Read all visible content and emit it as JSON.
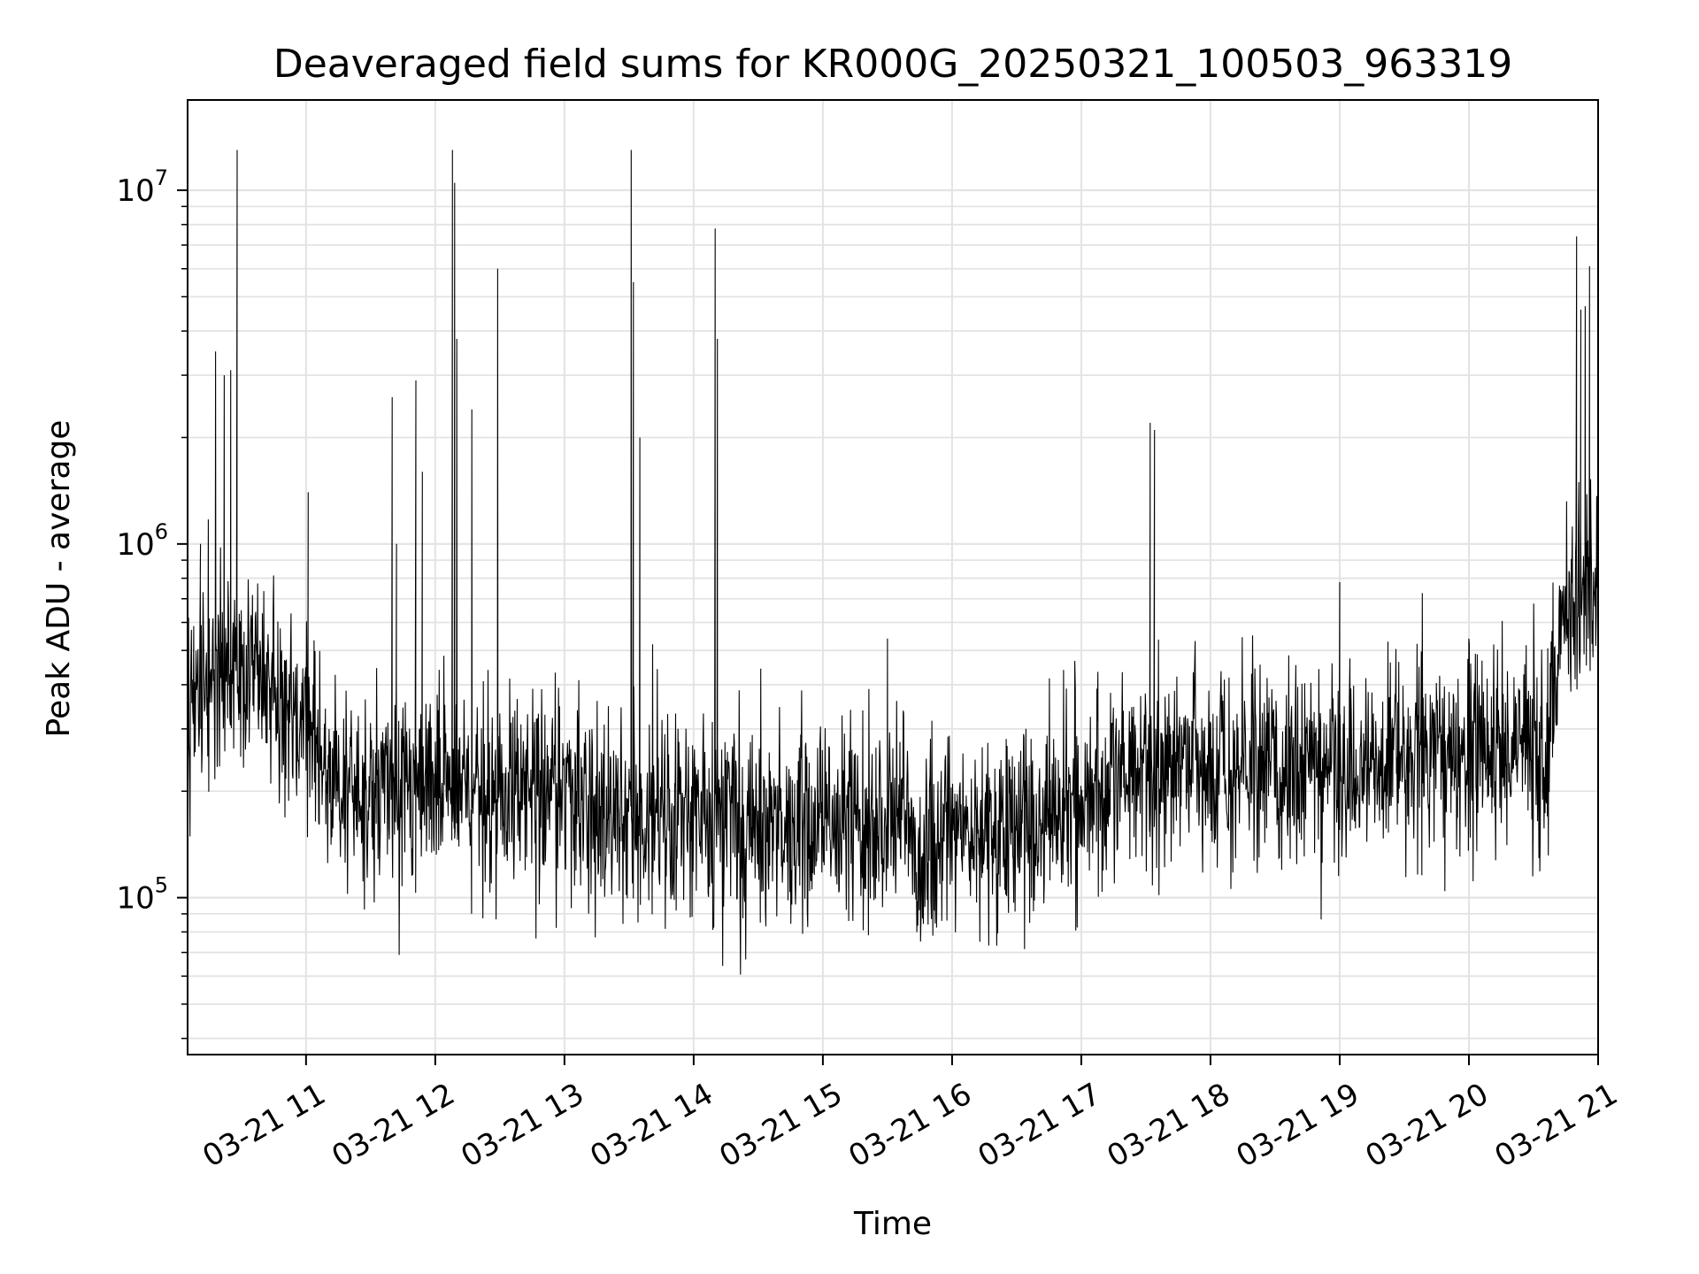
{
  "chart_data": {
    "type": "line",
    "title": "Deaveraged field sums for KR000G_20250321_100503_963319",
    "xlabel": "Time",
    "ylabel": "Peak ADU - average",
    "yscale": "log",
    "xlim": [
      "2025-03-21 10:05",
      "2025-03-21 21:00"
    ],
    "ylim": [
      36000,
      18000000
    ],
    "grid": true,
    "line_color": "#000000",
    "x_ticks": [
      "03-21 11",
      "03-21 12",
      "03-21 13",
      "03-21 14",
      "03-21 15",
      "03-21 16",
      "03-21 17",
      "03-21 18",
      "03-21 19",
      "03-21 20",
      "03-21 21"
    ],
    "y_ticks": [
      {
        "base": "10",
        "exp": "5",
        "value": 100000
      },
      {
        "base": "10",
        "exp": "6",
        "value": 1000000
      },
      {
        "base": "10",
        "exp": "7",
        "value": 10000000
      }
    ],
    "series": [
      {
        "x": [
          "2025-03-21 10:05",
          "2025-03-21 10:20",
          "2025-03-21 10:40",
          "2025-03-21 11:00",
          "2025-03-21 11:10",
          "2025-03-21 11:30",
          "2025-03-21 12:00",
          "2025-03-21 12:30",
          "2025-03-21 13:00",
          "2025-03-21 13:30",
          "2025-03-21 14:00",
          "2025-03-21 14:30",
          "2025-03-21 15:00",
          "2025-03-21 15:30",
          "2025-03-21 16:00",
          "2025-03-21 16:30",
          "2025-03-21 17:00",
          "2025-03-21 17:30",
          "2025-03-21 18:00",
          "2025-03-21 18:30",
          "2025-03-21 19:00",
          "2025-03-21 19:30",
          "2025-03-21 20:00",
          "2025-03-21 20:35",
          "2025-03-21 20:45",
          "2025-03-21 21:00"
        ],
        "y": [
          320000,
          450000,
          400000,
          300000,
          220000,
          200000,
          210000,
          200000,
          190000,
          180000,
          160000,
          160000,
          165000,
          160000,
          155000,
          155000,
          185000,
          230000,
          240000,
          230000,
          240000,
          240000,
          250000,
          250000,
          700000,
          800000
        ]
      }
    ],
    "spikes": [
      {
        "x": "2025-03-21 10:11",
        "y": 1000000
      },
      {
        "x": "2025-03-21 10:18",
        "y": 3500000
      },
      {
        "x": "2025-03-21 10:22",
        "y": 3000000
      },
      {
        "x": "2025-03-21 10:25",
        "y": 3100000
      },
      {
        "x": "2025-03-21 10:28",
        "y": 13000000
      },
      {
        "x": "2025-03-21 11:01",
        "y": 1400000
      },
      {
        "x": "2025-03-21 11:40",
        "y": 2600000
      },
      {
        "x": "2025-03-21 11:42",
        "y": 1000000
      },
      {
        "x": "2025-03-21 11:51",
        "y": 2900000
      },
      {
        "x": "2025-03-21 11:54",
        "y": 1600000
      },
      {
        "x": "2025-03-21 12:08",
        "y": 13000000
      },
      {
        "x": "2025-03-21 12:09",
        "y": 10500000
      },
      {
        "x": "2025-03-21 12:10",
        "y": 3800000
      },
      {
        "x": "2025-03-21 12:17",
        "y": 2400000
      },
      {
        "x": "2025-03-21 12:29",
        "y": 6000000
      },
      {
        "x": "2025-03-21 13:31",
        "y": 13000000
      },
      {
        "x": "2025-03-21 13:32",
        "y": 5500000
      },
      {
        "x": "2025-03-21 13:35",
        "y": 2000000
      },
      {
        "x": "2025-03-21 14:10",
        "y": 7800000
      },
      {
        "x": "2025-03-21 14:11",
        "y": 3800000
      },
      {
        "x": "2025-03-21 15:30",
        "y": 540000
      },
      {
        "x": "2025-03-21 17:32",
        "y": 2200000
      },
      {
        "x": "2025-03-21 17:34",
        "y": 2100000
      },
      {
        "x": "2025-03-21 19:00",
        "y": 780000
      },
      {
        "x": "2025-03-21 20:50",
        "y": 7400000
      },
      {
        "x": "2025-03-21 20:52",
        "y": 4600000
      },
      {
        "x": "2025-03-21 20:54",
        "y": 4700000
      },
      {
        "x": "2025-03-21 20:56",
        "y": 6100000
      }
    ]
  }
}
